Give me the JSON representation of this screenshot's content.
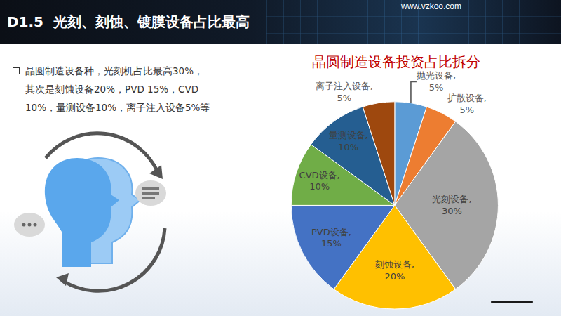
{
  "header": {
    "title": "D1.5  光刻、刻蚀、镀膜设备占比最高",
    "site": "www.vzkoo.com"
  },
  "bullet": [
    "晶圆制造设备种，光刻机占比最高30%，",
    "其次是刻蚀设备20%，PVD 15%，CVD",
    "10%，量测设备10%，离子注入设备5%等"
  ],
  "chart_data": {
    "type": "pie",
    "title": "晶圆制造设备投资占比拆分",
    "categories": [
      "抛光设备",
      "扩散设备",
      "光刻设备",
      "刻蚀设备",
      "PVD设备",
      "CVD设备",
      "量测设备",
      "离子注入设备"
    ],
    "values": [
      5,
      5,
      30,
      20,
      15,
      10,
      10,
      5
    ],
    "value_labels": [
      "抛光设备, 5%",
      "扩散设备, 5%",
      "光刻设备, 30%",
      "刻蚀设备, 20%",
      "PVD设备, 15%",
      "CVD设备, 10%",
      "量测设备, 10%",
      "离子注入设备, 5%"
    ],
    "colors": [
      "#5b9bd5",
      "#ed7d31",
      "#a5a5a5",
      "#ffc000",
      "#4472c4",
      "#70ad47",
      "#255e91",
      "#9e480e"
    ],
    "data_labels": true
  }
}
